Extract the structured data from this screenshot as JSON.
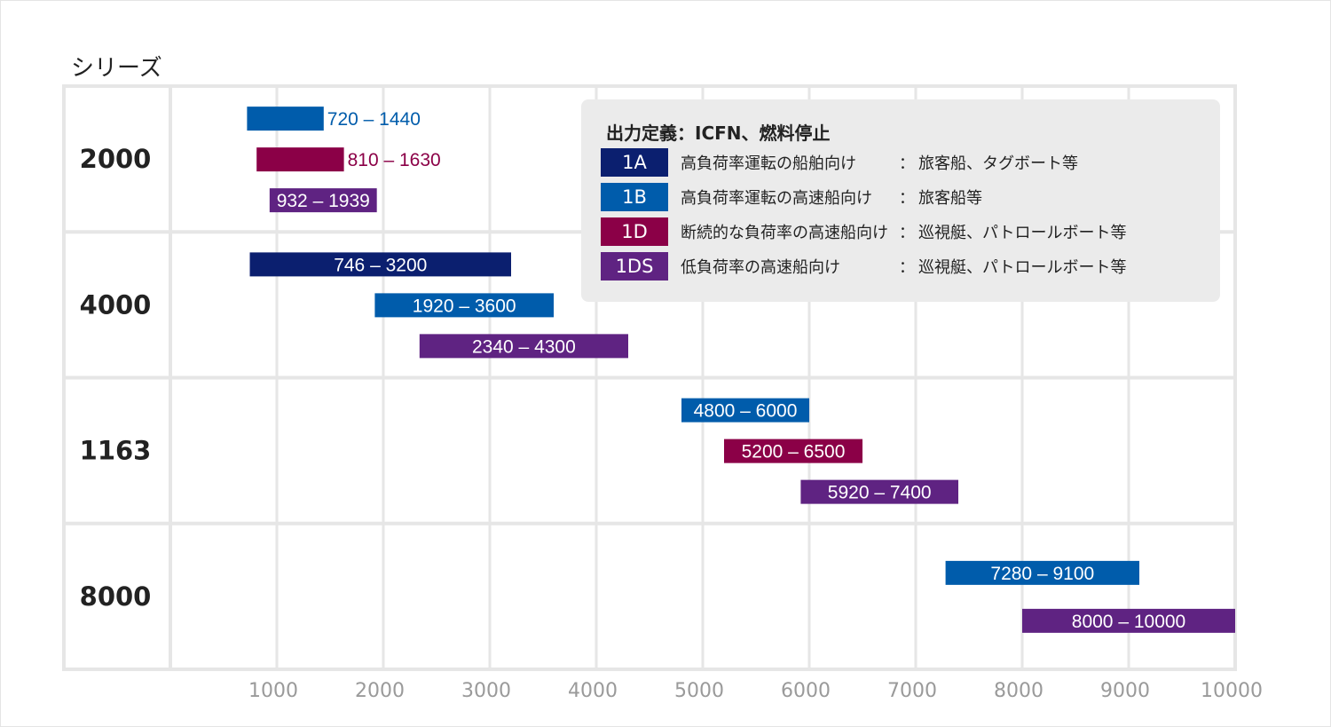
{
  "series_title": "シリーズ",
  "colors": {
    "1A": "#0b1f6f",
    "1B": "#005cab",
    "1D": "#8b0047",
    "1DS": "#5f2382"
  },
  "legend": {
    "title": "出力定義：ICFN、燃料停止",
    "items": [
      {
        "code": "1A",
        "desc": "高負荷率運転の船舶向け",
        "colon": "：",
        "example": "旅客船、タグボート等"
      },
      {
        "code": "1B",
        "desc": "高負荷率運転の高速船向け",
        "colon": "：",
        "example": "旅客船等"
      },
      {
        "code": "1D",
        "desc": "断続的な負荷率の高速船向け",
        "colon": "：",
        "example": "巡視艇、パトロールボート等"
      },
      {
        "code": "1DS",
        "desc": "低負荷率の高速船向け",
        "colon": "：",
        "example": "巡視艇、パトロールボート等"
      }
    ]
  },
  "chart_data": {
    "type": "range-bar",
    "ylabel": "シリーズ",
    "xlim": [
      0,
      10000
    ],
    "x_ticks": [
      "1000",
      "2000",
      "3000",
      "4000",
      "5000",
      "6000",
      "7000",
      "8000",
      "9000",
      "10000"
    ],
    "grid": true,
    "categories": [
      "2000",
      "4000",
      "1163",
      "8000"
    ],
    "bars": [
      {
        "category": "2000",
        "series": "1B",
        "start": 720,
        "end": 1440,
        "label": "720 – 1440",
        "label_pos": "outside"
      },
      {
        "category": "2000",
        "series": "1D",
        "start": 810,
        "end": 1630,
        "label": "810 – 1630",
        "label_pos": "outside"
      },
      {
        "category": "2000",
        "series": "1DS",
        "start": 932,
        "end": 1939,
        "label": "932 – 1939",
        "label_pos": "inside"
      },
      {
        "category": "4000",
        "series": "1A",
        "start": 746,
        "end": 3200,
        "label": "746 – 3200",
        "label_pos": "inside"
      },
      {
        "category": "4000",
        "series": "1B",
        "start": 1920,
        "end": 3600,
        "label": "1920 – 3600",
        "label_pos": "inside"
      },
      {
        "category": "4000",
        "series": "1DS",
        "start": 2340,
        "end": 4300,
        "label": "2340 – 4300",
        "label_pos": "inside"
      },
      {
        "category": "1163",
        "series": "1B",
        "start": 4800,
        "end": 6000,
        "label": "4800 – 6000",
        "label_pos": "inside"
      },
      {
        "category": "1163",
        "series": "1D",
        "start": 5200,
        "end": 6500,
        "label": "5200 – 6500",
        "label_pos": "inside"
      },
      {
        "category": "1163",
        "series": "1DS",
        "start": 5920,
        "end": 7400,
        "label": "5920 – 7400",
        "label_pos": "inside"
      },
      {
        "category": "8000",
        "series": "1B",
        "start": 7280,
        "end": 9100,
        "label": "7280 – 9100",
        "label_pos": "inside"
      },
      {
        "category": "8000",
        "series": "1DS",
        "start": 8000,
        "end": 10000,
        "label": "8000 – 10000",
        "label_pos": "inside"
      }
    ]
  }
}
